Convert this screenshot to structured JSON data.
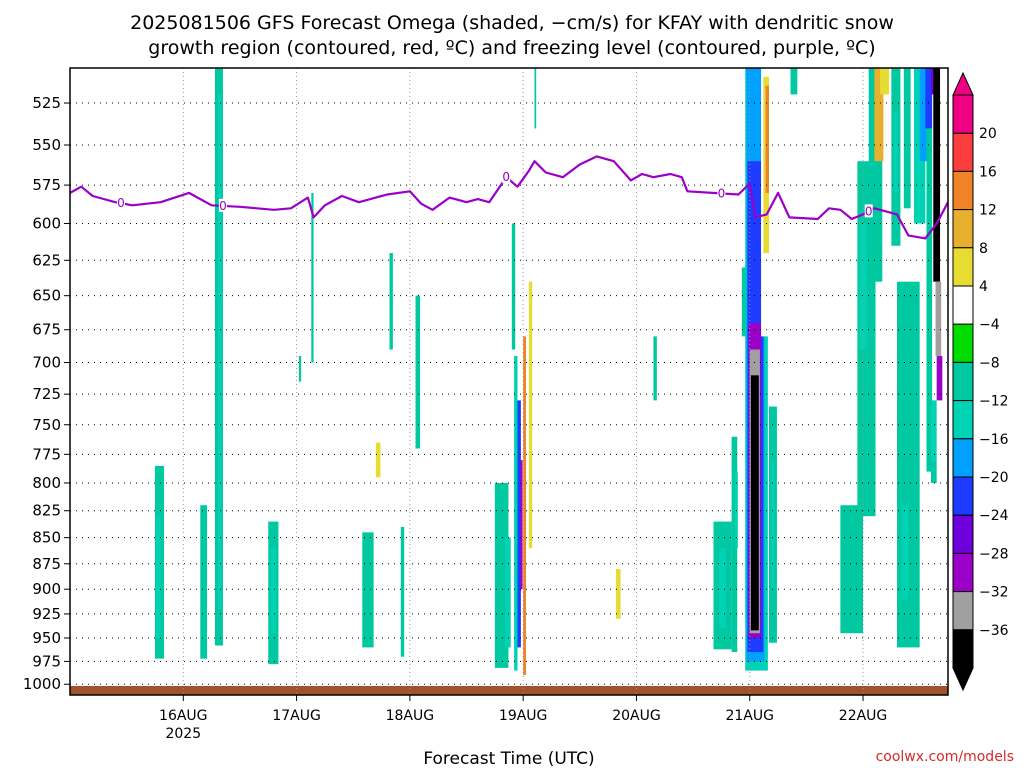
{
  "chart_data": {
    "type": "heatmap",
    "title_line1": "2025081506 GFS Forecast Omega (shaded, −cm/s) for KFAY with dendritic snow",
    "title_line2": "growth region (contoured, red, ºC) and freezing level (contoured, purple, ºC)",
    "xlabel": "Forecast Time (UTC)",
    "credit": "coolwx.com/models",
    "y_ticks": [
      525,
      550,
      575,
      600,
      625,
      650,
      675,
      700,
      725,
      750,
      775,
      800,
      825,
      850,
      875,
      900,
      925,
      950,
      975,
      1000
    ],
    "y_scale": "log-pressure (hPa), inverted",
    "ylim": [
      1012,
      505
    ],
    "xlim": [
      -1.0,
      6.75
    ],
    "x_ticks": [
      {
        "label": "16AUG",
        "sub": "2025",
        "day": 0
      },
      {
        "label": "17AUG",
        "sub": "",
        "day": 1
      },
      {
        "label": "18AUG",
        "sub": "",
        "day": 2
      },
      {
        "label": "19AUG",
        "sub": "",
        "day": 3
      },
      {
        "label": "20AUG",
        "sub": "",
        "day": 4
      },
      {
        "label": "21AUG",
        "sub": "",
        "day": 5
      },
      {
        "label": "22AUG",
        "sub": "",
        "day": 6
      }
    ],
    "grid": true,
    "colorbar": {
      "levels": [
        -36,
        -32,
        -28,
        -24,
        -20,
        -16,
        -12,
        -8,
        -4,
        4,
        8,
        12,
        16,
        20
      ],
      "labels": [
        "20",
        "16",
        "12",
        "8",
        "4",
        "−4",
        "−8",
        "−12",
        "−16",
        "−20",
        "−24",
        "−28",
        "−32",
        "−36"
      ],
      "colors": [
        "#000000",
        "#a0a0a0",
        "#9a00c8",
        "#6e00dc",
        "#1e3cff",
        "#00a0ff",
        "#00d2b4",
        "#00c8a0",
        "#00dc00",
        "#ffffff",
        "#e6dc32",
        "#e6af2d",
        "#f08228",
        "#fa3c3c",
        "#f00082"
      ]
    },
    "freezing_level": {
      "label": "0",
      "points": [
        [
          -1.0,
          580
        ],
        [
          -0.9,
          576
        ],
        [
          -0.8,
          582
        ],
        [
          -0.6,
          586
        ],
        [
          -0.45,
          588
        ],
        [
          -0.2,
          586
        ],
        [
          0.05,
          580
        ],
        [
          0.25,
          588
        ],
        [
          0.5,
          589
        ],
        [
          0.8,
          591
        ],
        [
          0.95,
          590
        ],
        [
          1.1,
          583
        ],
        [
          1.15,
          596
        ],
        [
          1.25,
          588
        ],
        [
          1.4,
          582
        ],
        [
          1.55,
          586
        ],
        [
          1.8,
          581
        ],
        [
          2.0,
          579
        ],
        [
          2.1,
          587
        ],
        [
          2.2,
          591
        ],
        [
          2.35,
          583
        ],
        [
          2.5,
          586
        ],
        [
          2.6,
          584
        ],
        [
          2.7,
          586
        ],
        [
          2.85,
          570
        ],
        [
          2.95,
          576
        ],
        [
          3.05,
          566
        ],
        [
          3.1,
          560
        ],
        [
          3.2,
          567
        ],
        [
          3.35,
          570
        ],
        [
          3.5,
          562
        ],
        [
          3.65,
          557
        ],
        [
          3.8,
          560
        ],
        [
          3.95,
          572
        ],
        [
          4.05,
          568
        ],
        [
          4.15,
          570
        ],
        [
          4.3,
          568
        ],
        [
          4.4,
          570
        ],
        [
          4.45,
          579
        ],
        [
          4.9,
          581
        ],
        [
          5.0,
          574
        ],
        [
          5.05,
          596
        ],
        [
          5.15,
          594
        ],
        [
          5.25,
          580
        ],
        [
          5.35,
          596
        ],
        [
          5.6,
          597
        ],
        [
          5.7,
          590
        ],
        [
          5.8,
          591
        ],
        [
          5.9,
          597
        ],
        [
          6.0,
          594
        ],
        [
          6.1,
          590
        ],
        [
          6.3,
          594
        ],
        [
          6.4,
          608
        ],
        [
          6.55,
          610
        ],
        [
          6.65,
          600
        ],
        [
          6.75,
          586
        ]
      ],
      "label_days": [
        -0.55,
        0.35,
        2.85,
        4.75,
        6.05
      ]
    },
    "omega_cells": [
      {
        "x": 0.28,
        "w": 0.07,
        "p1": 505,
        "p2": 958,
        "v": -8
      },
      {
        "x": 0.305,
        "w": 0.03,
        "p1": 520,
        "p2": 920,
        "v": -12
      },
      {
        "x": -0.25,
        "w": 0.08,
        "p1": 785,
        "p2": 972,
        "v": -8
      },
      {
        "x": -0.24,
        "w": 0.04,
        "p1": 830,
        "p2": 950,
        "v": -12
      },
      {
        "x": 0.15,
        "w": 0.06,
        "p1": 820,
        "p2": 972,
        "v": -8
      },
      {
        "x": 0.0,
        "w": 0.05,
        "p1": 860,
        "p2": 935,
        "v": 4
      },
      {
        "x": 0.1,
        "w": 0.04,
        "p1": 720,
        "p2": 770,
        "v": 4
      },
      {
        "x": 0.75,
        "w": 0.09,
        "p1": 835,
        "p2": 978,
        "v": -8
      },
      {
        "x": 0.77,
        "w": 0.05,
        "p1": 860,
        "p2": 945,
        "v": -12
      },
      {
        "x": 0.9,
        "w": 0.05,
        "p1": 860,
        "p2": 925,
        "v": 4
      },
      {
        "x": 0.82,
        "w": 0.04,
        "p1": 650,
        "p2": 790,
        "v": 4
      },
      {
        "x": 1.08,
        "w": 0.05,
        "p1": 740,
        "p2": 920,
        "v": 4
      },
      {
        "x": 1.13,
        "w": 0.02,
        "p1": 580,
        "p2": 700,
        "v": -8
      },
      {
        "x": 1.02,
        "w": 0.02,
        "p1": 695,
        "p2": 715,
        "v": -8
      },
      {
        "x": 1.58,
        "w": 0.1,
        "p1": 845,
        "p2": 960,
        "v": -8
      },
      {
        "x": 1.68,
        "w": 0.06,
        "p1": 730,
        "p2": 820,
        "v": 4
      },
      {
        "x": 1.7,
        "w": 0.04,
        "p1": 765,
        "p2": 795,
        "v": 8
      },
      {
        "x": 1.82,
        "w": 0.03,
        "p1": 620,
        "p2": 690,
        "v": -8
      },
      {
        "x": 1.92,
        "w": 0.03,
        "p1": 840,
        "p2": 970,
        "v": -8
      },
      {
        "x": 2.05,
        "w": 0.04,
        "p1": 650,
        "p2": 770,
        "v": -8
      },
      {
        "x": 2.0,
        "w": 0.05,
        "p1": 540,
        "p2": 625,
        "v": 4
      },
      {
        "x": 2.3,
        "w": 0.03,
        "p1": 625,
        "p2": 690,
        "v": 4
      },
      {
        "x": 2.75,
        "w": 0.12,
        "p1": 800,
        "p2": 982,
        "v": -8
      },
      {
        "x": 2.84,
        "w": 0.05,
        "p1": 850,
        "p2": 960,
        "v": -12
      },
      {
        "x": 2.92,
        "w": 0.03,
        "p1": 695,
        "p2": 985,
        "v": -12
      },
      {
        "x": 2.95,
        "w": 0.03,
        "p1": 730,
        "p2": 960,
        "v": -20
      },
      {
        "x": 2.975,
        "w": 0.02,
        "p1": 780,
        "p2": 900,
        "v": -28
      },
      {
        "x": 3.0,
        "w": 0.025,
        "p1": 680,
        "p2": 990,
        "v": 16
      },
      {
        "x": 3.03,
        "w": 0.05,
        "p1": 620,
        "p2": 970,
        "v": 4
      },
      {
        "x": 3.05,
        "w": 0.03,
        "p1": 640,
        "p2": 860,
        "v": 8
      },
      {
        "x": 3.1,
        "w": 0.03,
        "p1": 740,
        "p2": 790,
        "v": 4
      },
      {
        "x": 2.98,
        "w": 0.03,
        "p1": 505,
        "p2": 545,
        "v": 4
      },
      {
        "x": 3.1,
        "w": 0.015,
        "p1": 505,
        "p2": 540,
        "v": -8
      },
      {
        "x": 2.9,
        "w": 0.03,
        "p1": 600,
        "p2": 690,
        "v": -8
      },
      {
        "x": 3.8,
        "w": 0.08,
        "p1": 860,
        "p2": 975,
        "v": 4
      },
      {
        "x": 3.82,
        "w": 0.04,
        "p1": 880,
        "p2": 930,
        "v": 8
      },
      {
        "x": 3.95,
        "w": 0.03,
        "p1": 750,
        "p2": 820,
        "v": 4
      },
      {
        "x": 4.15,
        "w": 0.03,
        "p1": 680,
        "p2": 730,
        "v": -8
      },
      {
        "x": 4.02,
        "w": 0.03,
        "p1": 575,
        "p2": 615,
        "v": 4
      },
      {
        "x": 4.45,
        "w": 0.08,
        "p1": 540,
        "p2": 580,
        "v": 4
      },
      {
        "x": 4.68,
        "w": 0.16,
        "p1": 835,
        "p2": 962,
        "v": -8
      },
      {
        "x": 4.73,
        "w": 0.06,
        "p1": 860,
        "p2": 940,
        "v": -12
      },
      {
        "x": 4.84,
        "w": 0.05,
        "p1": 760,
        "p2": 965,
        "v": -8
      },
      {
        "x": 4.87,
        "w": 0.025,
        "p1": 790,
        "p2": 860,
        "v": -12
      },
      {
        "x": 4.93,
        "w": 0.04,
        "p1": 630,
        "p2": 680,
        "v": -8
      },
      {
        "x": 4.96,
        "w": 0.2,
        "p1": 505,
        "p2": 985,
        "v": -12
      },
      {
        "x": 4.97,
        "w": 0.16,
        "p1": 505,
        "p2": 975,
        "v": -16
      },
      {
        "x": 4.98,
        "w": 0.14,
        "p1": 560,
        "p2": 965,
        "v": -20
      },
      {
        "x": 4.99,
        "w": 0.11,
        "p1": 670,
        "p2": 950,
        "v": -28
      },
      {
        "x": 5.0,
        "w": 0.09,
        "p1": 690,
        "p2": 945,
        "v": -32
      },
      {
        "x": 5.01,
        "w": 0.07,
        "p1": 710,
        "p2": 942,
        "v": -36
      },
      {
        "x": 5.1,
        "w": 0.07,
        "p1": 505,
        "p2": 680,
        "v": 4
      },
      {
        "x": 5.12,
        "w": 0.05,
        "p1": 510,
        "p2": 620,
        "v": 8
      },
      {
        "x": 5.14,
        "w": 0.03,
        "p1": 515,
        "p2": 580,
        "v": 16
      },
      {
        "x": 5.2,
        "w": 0.06,
        "p1": 505,
        "p2": 570,
        "v": 4
      },
      {
        "x": 5.17,
        "w": 0.07,
        "p1": 735,
        "p2": 955,
        "v": -8
      },
      {
        "x": 5.19,
        "w": 0.03,
        "p1": 780,
        "p2": 900,
        "v": -12
      },
      {
        "x": 5.28,
        "w": 0.04,
        "p1": 740,
        "p2": 815,
        "v": 4
      },
      {
        "x": 5.36,
        "w": 0.06,
        "p1": 505,
        "p2": 520,
        "v": -8
      },
      {
        "x": 5.8,
        "w": 0.2,
        "p1": 820,
        "p2": 945,
        "v": -8
      },
      {
        "x": 5.95,
        "w": 0.16,
        "p1": 560,
        "p2": 830,
        "v": -8
      },
      {
        "x": 5.97,
        "w": 0.06,
        "p1": 600,
        "p2": 690,
        "v": -12
      },
      {
        "x": 6.05,
        "w": 0.12,
        "p1": 505,
        "p2": 640,
        "v": -8
      },
      {
        "x": 6.1,
        "w": 0.08,
        "p1": 505,
        "p2": 560,
        "v": 12
      },
      {
        "x": 6.15,
        "w": 0.08,
        "p1": 505,
        "p2": 520,
        "v": 8
      },
      {
        "x": 6.3,
        "w": 0.2,
        "p1": 640,
        "p2": 960,
        "v": -8
      },
      {
        "x": 6.34,
        "w": 0.06,
        "p1": 820,
        "p2": 910,
        "v": -12
      },
      {
        "x": 6.25,
        "w": 0.08,
        "p1": 505,
        "p2": 615,
        "v": -8
      },
      {
        "x": 6.27,
        "w": 0.04,
        "p1": 530,
        "p2": 580,
        "v": -12
      },
      {
        "x": 6.36,
        "w": 0.06,
        "p1": 505,
        "p2": 590,
        "v": -8
      },
      {
        "x": 6.45,
        "w": 0.1,
        "p1": 505,
        "p2": 600,
        "v": -12
      },
      {
        "x": 6.5,
        "w": 0.08,
        "p1": 505,
        "p2": 560,
        "v": -16
      },
      {
        "x": 6.55,
        "w": 0.06,
        "p1": 505,
        "p2": 540,
        "v": -20
      },
      {
        "x": 6.6,
        "w": 0.05,
        "p1": 505,
        "p2": 520,
        "v": -24
      },
      {
        "x": 6.56,
        "w": 0.05,
        "p1": 540,
        "p2": 790,
        "v": -8
      },
      {
        "x": 6.62,
        "w": 0.06,
        "p1": 505,
        "p2": 640,
        "v": -36
      },
      {
        "x": 6.64,
        "w": 0.05,
        "p1": 640,
        "p2": 695,
        "v": -32
      },
      {
        "x": 6.65,
        "w": 0.05,
        "p1": 695,
        "p2": 730,
        "v": -28
      },
      {
        "x": 6.6,
        "w": 0.05,
        "p1": 730,
        "p2": 780,
        "v": -12
      },
      {
        "x": 6.6,
        "w": 0.05,
        "p1": 780,
        "p2": 800,
        "v": -8
      }
    ]
  }
}
